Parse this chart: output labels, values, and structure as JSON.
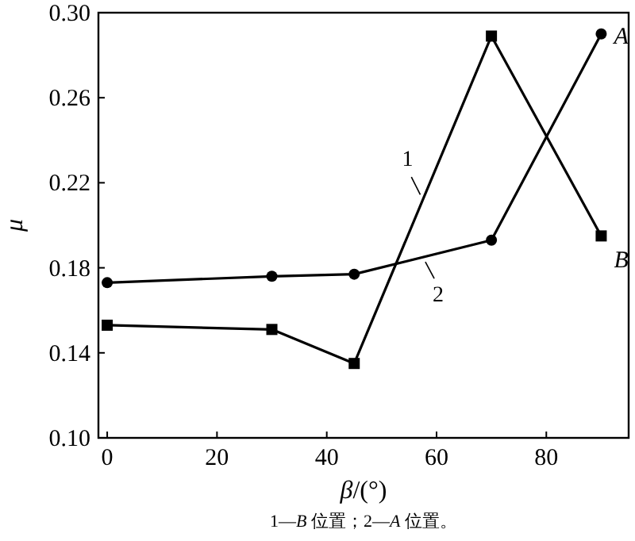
{
  "chart_data": {
    "type": "line",
    "xlabel": "β/(°)",
    "ylabel": "μ",
    "x": [
      0,
      30,
      45,
      70,
      90
    ],
    "xlim": [
      -1.6,
      95
    ],
    "xticks": [
      0,
      20,
      40,
      60,
      80
    ],
    "ylim": [
      0.1,
      0.3
    ],
    "yticks": [
      {
        "value": 0.1,
        "label": "0.10"
      },
      {
        "value": 0.14,
        "label": "0.14"
      },
      {
        "value": 0.18,
        "label": "0.18"
      },
      {
        "value": 0.22,
        "label": "0.22"
      },
      {
        "value": 0.26,
        "label": "0.26"
      },
      {
        "value": 0.3,
        "label": "0.30"
      }
    ],
    "grid": false,
    "line_style": "solid",
    "series": [
      {
        "name": "1",
        "color": "#000000",
        "marker": "square",
        "values": [
          0.153,
          0.151,
          0.135,
          0.289,
          0.195
        ]
      },
      {
        "name": "2",
        "color": "#000000",
        "marker": "circle",
        "values": [
          0.173,
          0.176,
          0.177,
          0.193,
          0.29
        ]
      }
    ],
    "annotations": [
      {
        "text": "A",
        "x": 90,
        "y": 0.29
      },
      {
        "text": "B",
        "x": 90,
        "y": 0.195
      },
      "1—B 位置；2—A 位置。"
    ]
  }
}
